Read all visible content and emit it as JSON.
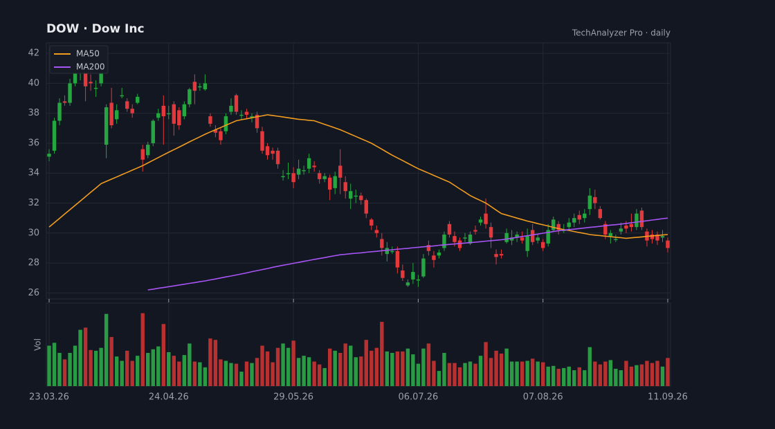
{
  "chart_data": {
    "type": "candlestick",
    "title": "DOW  ·  Dow Inc",
    "subtitle": "TechAnalyzer Pro · daily",
    "volume_label": "Vol",
    "categories": [
      "23.03.26",
      null,
      null,
      null,
      null,
      null,
      null,
      null,
      null,
      null,
      null,
      null,
      null,
      null,
      null,
      null,
      null,
      null,
      null,
      null,
      null,
      null,
      null,
      "24.04.26",
      null,
      null,
      null,
      null,
      null,
      null,
      null,
      null,
      null,
      null,
      null,
      null,
      null,
      null,
      null,
      null,
      null,
      null,
      null,
      null,
      null,
      null,
      null,
      "29.05.26",
      null,
      null,
      null,
      null,
      null,
      null,
      null,
      null,
      null,
      null,
      null,
      null,
      null,
      null,
      null,
      null,
      null,
      null,
      null,
      null,
      null,
      null,
      null,
      "06.07.26",
      null,
      null,
      null,
      null,
      null,
      null,
      null,
      null,
      null,
      null,
      null,
      null,
      null,
      null,
      null,
      null,
      null,
      null,
      null,
      null,
      null,
      null,
      null,
      "07.08.26",
      null,
      null,
      null,
      null,
      null,
      null,
      null,
      null,
      null,
      null,
      null,
      null,
      null,
      null,
      null,
      null,
      null,
      null,
      null,
      null,
      null,
      null,
      null,
      "11.09.26"
    ],
    "open": [
      35.1,
      35.5,
      37.5,
      38.8,
      38.7,
      40.0,
      40.9,
      40.8,
      40.1,
      39.7,
      40.0,
      35.9,
      38.7,
      37.6,
      39.2,
      38.8,
      38.3,
      38.7,
      35.6,
      35.2,
      36.0,
      37.7,
      38.5,
      38.0,
      38.6,
      38.2,
      37.8,
      38.6,
      40.1,
      39.8,
      39.6,
      37.8,
      36.9,
      36.8,
      36.8,
      38.1,
      39.2,
      37.9,
      38.1,
      37.8,
      37.9,
      36.8,
      35.8,
      35.5,
      35.5,
      33.8,
      34.0,
      34.0,
      33.9,
      34.2,
      34.3,
      34.5,
      34.0,
      33.6,
      33.7,
      33.0,
      34.5,
      33.4,
      32.3,
      32.5,
      32.5,
      32.2,
      30.9,
      30.2,
      29.6,
      28.6,
      28.8,
      28.8,
      27.5,
      26.5,
      26.9,
      26.9,
      27.1,
      29.2,
      28.5,
      28.5,
      29.0,
      30.6,
      29.8,
      29.5,
      29.7,
      29.3,
      30.2,
      30.7,
      31.3,
      30.4,
      28.6,
      28.6,
      29.4,
      29.5,
      29.7,
      29.7,
      28.8,
      30.2,
      29.5,
      29.4,
      29.3,
      30.2,
      30.6,
      30.2,
      30.4,
      30.7,
      31.2,
      31.0,
      31.6,
      32.4,
      31.6,
      30.6,
      29.8,
      29.6,
      30.1,
      30.5,
      30.6,
      30.4,
      31.5,
      30.1,
      29.9,
      29.9,
      29.7,
      29.5
    ],
    "high": [
      35.6,
      37.7,
      39.0,
      39.2,
      40.3,
      41.4,
      41.2,
      41.1,
      40.6,
      40.2,
      41.2,
      38.6,
      39.7,
      38.6,
      39.7,
      39.0,
      38.6,
      39.3,
      35.9,
      36.1,
      37.6,
      38.3,
      39.2,
      38.5,
      38.8,
      38.4,
      38.8,
      39.7,
      40.6,
      40.0,
      40.6,
      38.0,
      37.2,
      37.0,
      38.0,
      39.0,
      39.3,
      38.2,
      38.3,
      38.0,
      38.1,
      37.1,
      36.0,
      35.7,
      35.7,
      34.2,
      34.7,
      34.4,
      34.9,
      34.5,
      35.3,
      34.8,
      34.2,
      34.0,
      33.9,
      34.1,
      35.6,
      33.8,
      33.3,
      32.9,
      32.7,
      32.3,
      31.0,
      30.5,
      30.0,
      29.4,
      29.1,
      29.1,
      27.9,
      26.9,
      28.0,
      27.2,
      28.6,
      29.5,
      28.8,
      28.9,
      30.1,
      30.8,
      30.1,
      29.7,
      30.0,
      30.1,
      30.5,
      31.1,
      32.3,
      30.7,
      28.9,
      28.9,
      30.3,
      30.2,
      30.1,
      30.1,
      30.3,
      30.6,
      29.9,
      29.6,
      30.6,
      31.1,
      30.8,
      30.6,
      31.0,
      31.3,
      31.5,
      31.6,
      33.0,
      32.9,
      31.8,
      30.8,
      30.2,
      29.9,
      30.7,
      30.8,
      31.3,
      31.6,
      31.7,
      30.3,
      30.2,
      30.1,
      30.2,
      29.7
    ],
    "low": [
      34.8,
      35.3,
      37.2,
      38.5,
      38.5,
      39.8,
      40.2,
      38.8,
      39.5,
      39.1,
      39.8,
      35.0,
      37.0,
      37.3,
      39.0,
      38.1,
      37.7,
      38.6,
      34.1,
      35.0,
      35.8,
      37.5,
      35.9,
      37.6,
      36.5,
      36.9,
      37.6,
      38.4,
      38.6,
      39.5,
      39.5,
      37.1,
      36.4,
      35.9,
      36.6,
      37.9,
      37.9,
      37.6,
      37.6,
      37.4,
      36.7,
      35.3,
      34.9,
      34.9,
      34.3,
      33.5,
      33.6,
      33.0,
      33.6,
      33.9,
      34.0,
      34.1,
      33.3,
      33.4,
      32.2,
      32.6,
      32.6,
      32.3,
      31.6,
      32.0,
      31.9,
      31.0,
      30.2,
      29.7,
      28.5,
      28.1,
      28.6,
      27.3,
      26.8,
      26.4,
      26.6,
      26.4,
      27.0,
      28.5,
      27.7,
      28.3,
      28.8,
      29.7,
      29.1,
      28.8,
      29.4,
      29.2,
      29.9,
      30.5,
      30.3,
      29.0,
      27.9,
      28.3,
      29.3,
      29.2,
      29.4,
      29.3,
      28.4,
      29.2,
      29.3,
      28.8,
      29.1,
      30.1,
      29.9,
      30.0,
      30.2,
      30.4,
      30.6,
      30.7,
      31.2,
      31.6,
      30.9,
      29.6,
      29.3,
      29.4,
      29.9,
      30.0,
      30.1,
      30.2,
      30.2,
      29.1,
      29.3,
      29.2,
      29.4,
      28.7
    ],
    "close": [
      35.3,
      37.5,
      38.7,
      38.7,
      40.0,
      41.0,
      40.9,
      39.8,
      40.0,
      39.7,
      40.8,
      38.4,
      37.2,
      38.2,
      39.2,
      38.3,
      38.0,
      39.1,
      34.9,
      35.9,
      37.5,
      38.0,
      37.8,
      38.0,
      37.3,
      37.2,
      38.6,
      39.6,
      39.5,
      39.8,
      40.0,
      37.3,
      36.7,
      36.2,
      37.8,
      38.5,
      38.1,
      37.9,
      37.9,
      37.8,
      37.0,
      35.5,
      35.2,
      35.3,
      34.6,
      33.8,
      34.0,
      33.4,
      34.3,
      34.2,
      35.0,
      34.4,
      33.6,
      33.8,
      32.9,
      33.8,
      33.7,
      32.8,
      32.8,
      32.5,
      32.2,
      31.3,
      30.5,
      30.0,
      29.0,
      29.0,
      28.8,
      27.7,
      27.0,
      26.7,
      27.4,
      26.9,
      28.3,
      28.8,
      28.2,
      28.7,
      29.9,
      29.9,
      29.4,
      29.0,
      29.7,
      29.9,
      30.1,
      30.9,
      30.6,
      29.7,
      28.4,
      28.5,
      30.0,
      29.7,
      29.9,
      29.5,
      29.8,
      29.4,
      29.7,
      29.0,
      30.2,
      30.9,
      30.2,
      30.2,
      30.7,
      31.0,
      30.9,
      31.3,
      32.5,
      32.0,
      31.0,
      29.9,
      30.0,
      29.6,
      30.3,
      30.3,
      30.4,
      31.3,
      30.4,
      29.5,
      29.6,
      29.5,
      29.8,
      29.0
    ],
    "volume": [
      5.6,
      6.0,
      4.6,
      3.7,
      4.6,
      5.6,
      7.8,
      8.1,
      5.0,
      4.9,
      5.3,
      10.0,
      6.8,
      4.1,
      3.5,
      4.9,
      3.5,
      4.2,
      10.1,
      4.6,
      5.1,
      5.5,
      8.6,
      4.7,
      4.2,
      3.4,
      4.3,
      5.9,
      3.4,
      3.3,
      2.6,
      6.6,
      6.4,
      3.7,
      3.5,
      3.2,
      3.1,
      2.0,
      3.4,
      3.2,
      3.9,
      5.6,
      4.8,
      3.3,
      5.3,
      5.9,
      5.3,
      6.3,
      3.9,
      4.2,
      4.0,
      3.4,
      3.0,
      2.5,
      5.2,
      4.9,
      4.6,
      5.9,
      5.6,
      4.0,
      4.1,
      6.4,
      4.9,
      5.3,
      8.9,
      4.8,
      4.6,
      4.8,
      4.8,
      5.2,
      4.4,
      3.1,
      5.2,
      5.9,
      3.5,
      2.1,
      4.6,
      3.2,
      3.2,
      2.6,
      3.2,
      3.4,
      3.1,
      4.2,
      6.1,
      3.9,
      4.9,
      4.5,
      5.2,
      3.4,
      3.4,
      3.4,
      3.5,
      3.8,
      3.4,
      3.3,
      2.7,
      2.8,
      2.4,
      2.5,
      2.7,
      2.2,
      2.6,
      2.2,
      5.4,
      3.4,
      3.0,
      3.4,
      3.6,
      2.4,
      2.2,
      3.5,
      2.7,
      2.9,
      3.0,
      3.5,
      3.2,
      3.5,
      2.7,
      3.9
    ],
    "series": [
      {
        "name": "MA50",
        "color": "#f29d1f",
        "values": [
          30.4,
          30.69,
          30.98,
          31.27,
          31.56,
          31.85,
          32.14,
          32.43,
          32.72,
          33.01,
          33.3,
          33.45,
          33.6,
          33.75,
          33.9,
          34.05,
          34.2,
          34.35,
          34.5,
          34.68,
          34.86,
          35.04,
          35.22,
          35.4,
          35.57,
          35.74,
          35.91,
          36.09,
          36.26,
          36.43,
          36.6,
          36.75,
          36.9,
          37.05,
          37.2,
          37.35,
          37.5,
          37.57,
          37.63,
          37.7,
          37.77,
          37.83,
          37.9,
          37.85,
          37.8,
          37.75,
          37.7,
          37.65,
          37.6,
          37.57,
          37.53,
          37.5,
          37.38,
          37.26,
          37.14,
          37.02,
          36.9,
          36.75,
          36.6,
          36.45,
          36.3,
          36.15,
          36.0,
          35.8,
          35.6,
          35.4,
          35.2,
          35.02,
          34.84,
          34.66,
          34.48,
          34.3,
          34.15,
          34.0,
          33.85,
          33.7,
          33.55,
          33.4,
          33.18,
          32.95,
          32.73,
          32.5,
          32.33,
          32.17,
          32.0,
          31.77,
          31.53,
          31.3,
          31.2,
          31.1,
          31.0,
          30.9,
          30.8,
          30.72,
          30.63,
          30.55,
          30.47,
          30.38,
          30.3,
          30.23,
          30.17,
          30.1,
          30.03,
          29.97,
          29.9,
          29.86,
          29.83,
          29.79,
          29.76,
          29.72,
          29.69,
          29.65,
          29.68,
          29.71,
          29.74,
          29.78,
          29.81,
          29.84,
          29.87,
          29.9
        ]
      },
      {
        "name": "MA200",
        "color": "#a855f7",
        "values": [
          null,
          null,
          null,
          null,
          null,
          null,
          null,
          null,
          null,
          null,
          null,
          null,
          null,
          null,
          null,
          null,
          null,
          null,
          null,
          26.2,
          26.25,
          26.31,
          26.36,
          26.42,
          26.47,
          26.53,
          26.58,
          26.64,
          26.69,
          26.75,
          26.8,
          26.87,
          26.93,
          27.0,
          27.07,
          27.13,
          27.2,
          27.27,
          27.34,
          27.42,
          27.49,
          27.56,
          27.63,
          27.71,
          27.78,
          27.85,
          27.91,
          27.98,
          28.04,
          28.11,
          28.17,
          28.24,
          28.3,
          28.36,
          28.43,
          28.49,
          28.55,
          28.58,
          28.62,
          28.65,
          28.68,
          28.72,
          28.75,
          28.78,
          28.82,
          28.85,
          28.88,
          28.92,
          28.95,
          28.98,
          29.02,
          29.05,
          29.08,
          29.11,
          29.14,
          29.18,
          29.21,
          29.24,
          29.27,
          29.3,
          29.33,
          29.36,
          29.39,
          29.42,
          29.46,
          29.49,
          29.52,
          29.55,
          29.6,
          29.66,
          29.71,
          29.77,
          29.82,
          29.88,
          29.93,
          29.99,
          30.04,
          30.1,
          30.15,
          30.19,
          30.23,
          30.26,
          30.3,
          30.34,
          30.38,
          30.41,
          30.45,
          30.49,
          30.53,
          30.56,
          30.6,
          30.64,
          30.69,
          30.73,
          30.78,
          30.82,
          30.87,
          30.91,
          30.96,
          31.0
        ]
      }
    ],
    "up_color": "#26a641",
    "down_color": "#e5383b",
    "volume_up_color": "#2b9a45",
    "volume_down_color": "#b8302f",
    "ylim": [
      25.6,
      42.7
    ],
    "yticks": [
      26,
      28,
      30,
      32,
      34,
      36,
      38,
      40,
      42
    ],
    "volume_ylim": [
      0,
      11.5
    ],
    "grid": true,
    "legend": "upper left"
  }
}
